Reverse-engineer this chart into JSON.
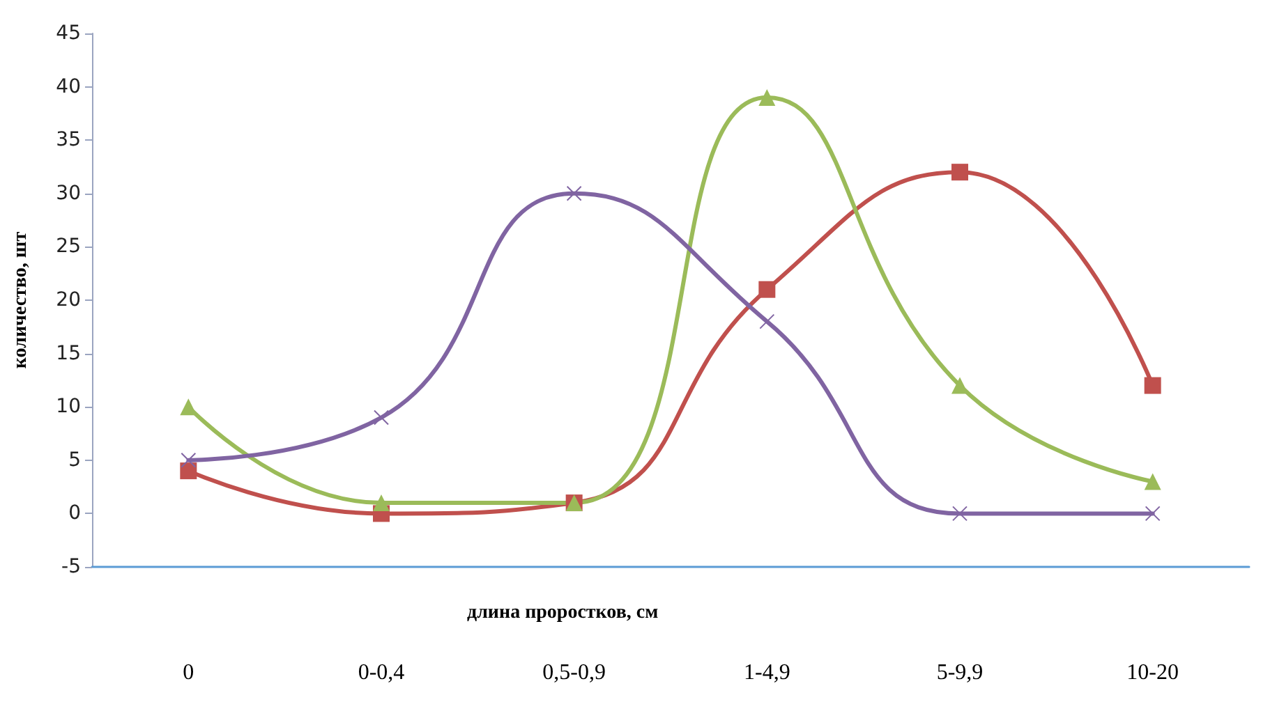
{
  "chart_data": {
    "type": "line",
    "xlabel": "длина проростков, см",
    "ylabel": "количество, шт",
    "categories": [
      "0",
      "0-0,4",
      "0,5-0,9",
      "1-4,9",
      "5-9,9",
      "10-20"
    ],
    "series": [
      {
        "color": "#c0504d",
        "marker": "square",
        "values": [
          4,
          0,
          1,
          21,
          32,
          12
        ]
      },
      {
        "color": "#9bbb59",
        "marker": "triangle",
        "values": [
          10,
          1,
          1,
          39,
          12,
          3
        ]
      },
      {
        "color": "#8064a2",
        "marker": "cross",
        "values": [
          5,
          9,
          30,
          18,
          0,
          0
        ]
      }
    ],
    "ylim": [
      -5,
      45
    ],
    "yticks": [
      -5,
      0,
      5,
      10,
      15,
      20,
      25,
      30,
      35,
      40,
      45
    ],
    "grid": false,
    "line_style": "solid"
  }
}
